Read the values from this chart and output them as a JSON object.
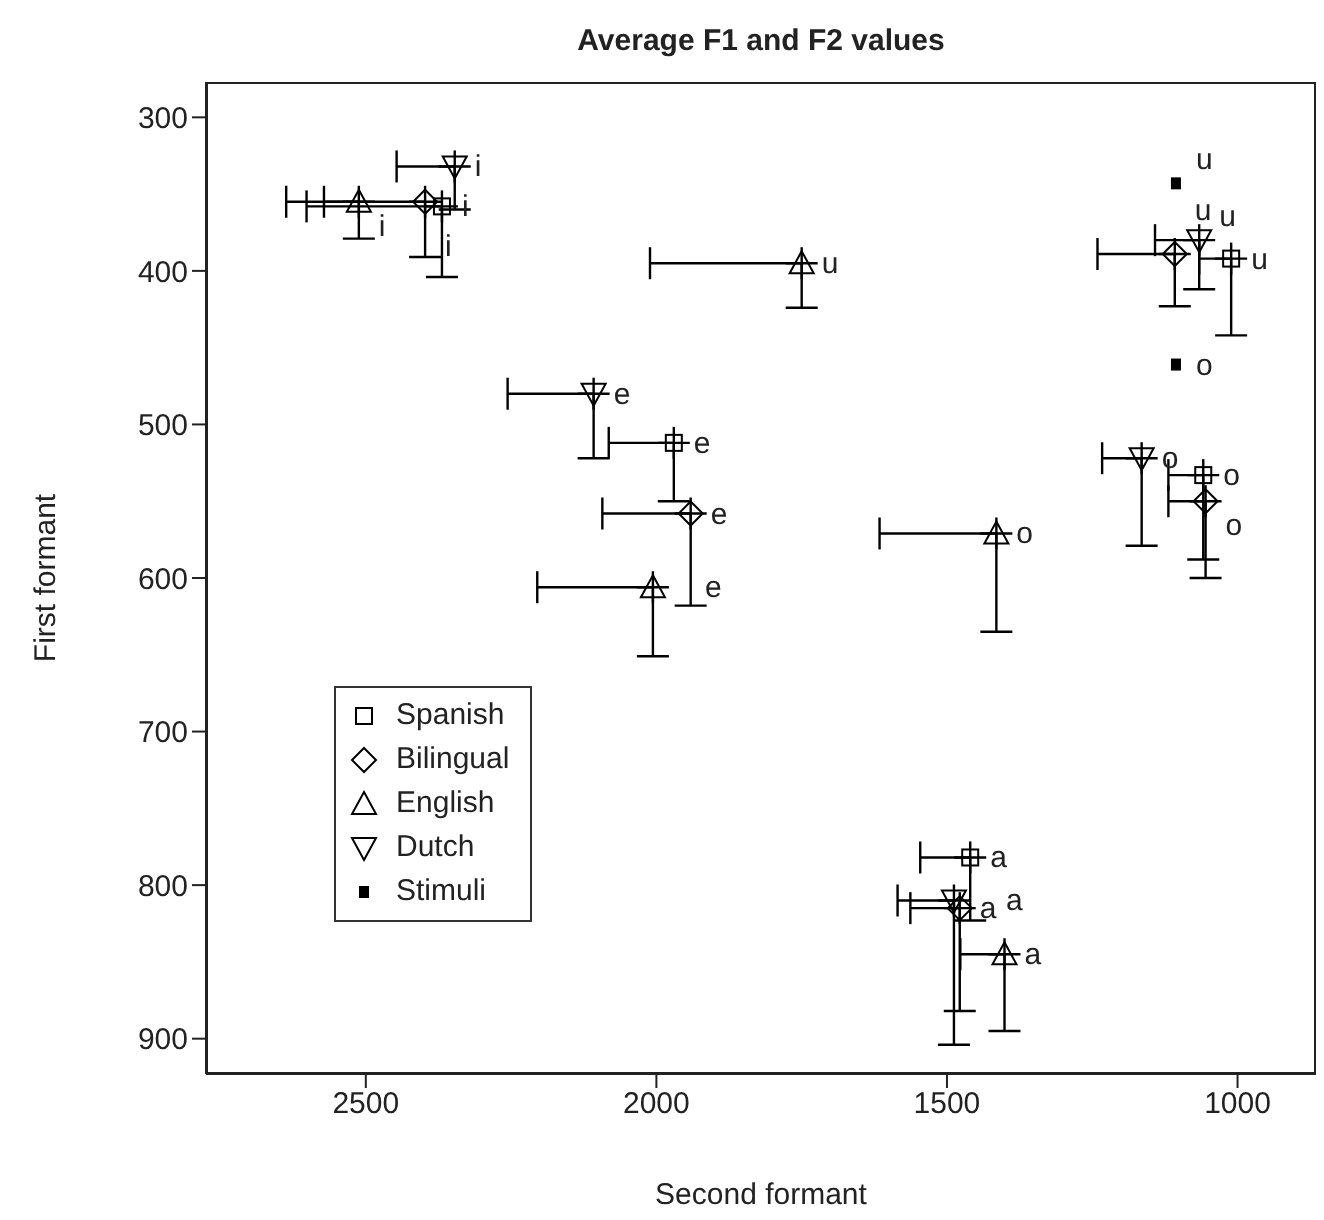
{
  "chart_data": {
    "type": "scatter",
    "title": "Average F1 and F2 values",
    "xlabel": "Second formant",
    "ylabel": "First formant",
    "xlim": [
      2775,
      865
    ],
    "xticks": [
      2500,
      2000,
      1500,
      1000
    ],
    "ylim": [
      923,
      277
    ],
    "yticks": [
      300,
      400,
      500,
      600,
      700,
      800,
      900
    ],
    "legend": "bottom left",
    "series": [
      {
        "name": "Spanish",
        "color": "#000000",
        "x": [
          2369,
          1011,
          1970,
          1059,
          1460
        ],
        "values": [
          358,
          392,
          512,
          533,
          782
        ],
        "xerrors": [
          [
            2369,
            2602
          ],
          [
            1011,
            1066
          ],
          [
            1970,
            2082
          ],
          [
            1059,
            1119
          ],
          [
            1460,
            1546
          ]
        ],
        "errors": [
          [
            358,
            404
          ],
          [
            392,
            442
          ],
          [
            512,
            550
          ],
          [
            533,
            588
          ],
          [
            782,
            823
          ]
        ]
      },
      {
        "name": "Bilingual",
        "color": "#000000",
        "x": [
          2398,
          1108,
          1941,
          1055,
          1478
        ],
        "values": [
          355,
          389,
          558,
          550,
          815
        ],
        "xerrors": [
          [
            2398,
            2637
          ],
          [
            1108,
            1241
          ],
          [
            1941,
            2093
          ],
          [
            1055,
            1119
          ],
          [
            1478,
            1563
          ]
        ],
        "errors": [
          [
            355,
            391
          ],
          [
            389,
            423
          ],
          [
            558,
            618
          ],
          [
            550,
            600
          ],
          [
            815,
            882
          ]
        ]
      },
      {
        "name": "English",
        "color": "#000000",
        "x": [
          2512,
          1750,
          2006,
          1415,
          1401
        ],
        "values": [
          355,
          395,
          606,
          571,
          845
        ],
        "xerrors": [
          [
            2512,
            2572
          ],
          [
            1750,
            2011
          ],
          [
            2006,
            2205
          ],
          [
            1415,
            1616
          ],
          [
            1401,
            1477
          ]
        ],
        "errors": [
          [
            355,
            379
          ],
          [
            395,
            424
          ],
          [
            606,
            651
          ],
          [
            571,
            635
          ],
          [
            845,
            895
          ]
        ]
      },
      {
        "name": "Dutch",
        "color": "#000000",
        "x": [
          2347,
          1066,
          2108,
          1165,
          1488
        ],
        "values": [
          332,
          380,
          480,
          522,
          810
        ],
        "xerrors": [
          [
            2347,
            2447
          ],
          [
            1066,
            1142
          ],
          [
            2108,
            2256
          ],
          [
            1165,
            1233
          ],
          [
            1488,
            1585
          ]
        ],
        "errors": [
          [
            332,
            360
          ],
          [
            380,
            412
          ],
          [
            480,
            522
          ],
          [
            522,
            579
          ],
          [
            810,
            904
          ]
        ]
      },
      {
        "name": "Stimuli",
        "color": "#000000",
        "x": [
          1106,
          1106
        ],
        "values": [
          343,
          461
        ]
      }
    ],
    "annotations": [
      {
        "text": "i",
        "x": 2369,
        "y": 358
      },
      {
        "text": "u",
        "x": 1011,
        "y": 392
      },
      {
        "text": "e",
        "x": 1970,
        "y": 512
      },
      {
        "text": "o",
        "x": 1059,
        "y": 533
      },
      {
        "text": "a",
        "x": 1460,
        "y": 782
      },
      {
        "text": "i",
        "x": 2398,
        "y": 355
      },
      {
        "text": "u",
        "x": 1108,
        "y": 389
      },
      {
        "text": "e",
        "x": 1941,
        "y": 558
      },
      {
        "text": "o",
        "x": 1055,
        "y": 550
      },
      {
        "text": "a",
        "x": 1478,
        "y": 815
      },
      {
        "text": "i",
        "x": 2512,
        "y": 355
      },
      {
        "text": "u",
        "x": 1750,
        "y": 395
      },
      {
        "text": "e",
        "x": 2006,
        "y": 606
      },
      {
        "text": "o",
        "x": 1415,
        "y": 571
      },
      {
        "text": "a",
        "x": 1401,
        "y": 845
      },
      {
        "text": "i",
        "x": 2347,
        "y": 332
      },
      {
        "text": "u",
        "x": 1066,
        "y": 380
      },
      {
        "text": "e",
        "x": 2108,
        "y": 480
      },
      {
        "text": "o",
        "x": 1165,
        "y": 522
      },
      {
        "text": "a",
        "x": 1488,
        "y": 810
      },
      {
        "text": "u",
        "x": 1106,
        "y": 343
      },
      {
        "text": "o",
        "x": 1106,
        "y": 461
      }
    ]
  }
}
